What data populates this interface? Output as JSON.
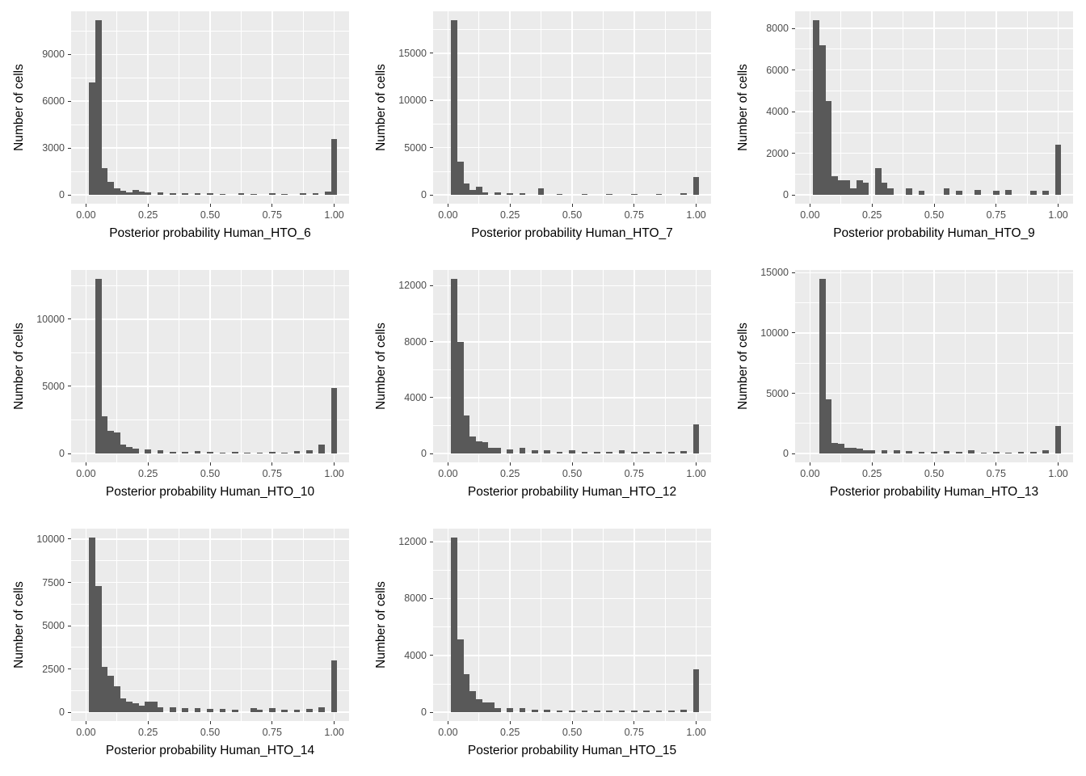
{
  "page": {
    "background": "#ffffff",
    "description_text": ""
  },
  "theme": {
    "panel_bg": "#ebebeb",
    "grid_major": "#ffffff",
    "grid_minor": "#ffffff",
    "bar_fill": "#595959",
    "tick_color": "#333333",
    "tick_label_color": "#4d4d4d",
    "axis_title_color": "#000000"
  },
  "chart_data": [
    {
      "id": "hto6",
      "type": "bar",
      "title": "",
      "xlabel": "Posterior probability Human_HTO_6",
      "ylabel": "Number of cells",
      "x_ticks": [
        0,
        0.25,
        0.5,
        0.75,
        1.0
      ],
      "x_tick_labels": [
        "0.00",
        "0.25",
        "0.50",
        "0.75",
        "1.00"
      ],
      "y_ticks": [
        0,
        3000,
        6000,
        9000
      ],
      "y_max": 11200,
      "bin_width": 0.025,
      "bars": [
        [
          0.025,
          7200
        ],
        [
          0.05,
          11200
        ],
        [
          0.075,
          1700
        ],
        [
          0.1,
          850
        ],
        [
          0.125,
          400
        ],
        [
          0.15,
          250
        ],
        [
          0.175,
          150
        ],
        [
          0.2,
          300
        ],
        [
          0.225,
          200
        ],
        [
          0.25,
          150
        ],
        [
          0.3,
          150
        ],
        [
          0.35,
          120
        ],
        [
          0.4,
          100
        ],
        [
          0.45,
          120
        ],
        [
          0.5,
          120
        ],
        [
          0.55,
          80
        ],
        [
          0.625,
          100
        ],
        [
          0.675,
          80
        ],
        [
          0.75,
          120
        ],
        [
          0.8,
          80
        ],
        [
          0.875,
          100
        ],
        [
          0.925,
          120
        ],
        [
          0.975,
          200
        ],
        [
          1.0,
          3600
        ]
      ]
    },
    {
      "id": "hto7",
      "type": "bar",
      "title": "",
      "xlabel": "Posterior probability Human_HTO_7",
      "ylabel": "Number of cells",
      "x_ticks": [
        0,
        0.25,
        0.5,
        0.75,
        1.0
      ],
      "x_tick_labels": [
        "0.00",
        "0.25",
        "0.50",
        "0.75",
        "1.00"
      ],
      "y_ticks": [
        0,
        5000,
        10000,
        15000
      ],
      "y_max": 18500,
      "bin_width": 0.025,
      "bars": [
        [
          0.025,
          18500
        ],
        [
          0.05,
          3500
        ],
        [
          0.075,
          1200
        ],
        [
          0.1,
          500
        ],
        [
          0.125,
          900
        ],
        [
          0.15,
          300
        ],
        [
          0.2,
          250
        ],
        [
          0.25,
          200
        ],
        [
          0.3,
          150
        ],
        [
          0.375,
          700
        ],
        [
          0.45,
          120
        ],
        [
          0.55,
          120
        ],
        [
          0.65,
          100
        ],
        [
          0.75,
          100
        ],
        [
          0.85,
          100
        ],
        [
          0.95,
          150
        ],
        [
          1.0,
          1900
        ]
      ]
    },
    {
      "id": "hto9",
      "type": "bar",
      "title": "",
      "xlabel": "Posterior probability Human_HTO_9",
      "ylabel": "Number of cells",
      "x_ticks": [
        0,
        0.25,
        0.5,
        0.75,
        1.0
      ],
      "x_tick_labels": [
        "0.00",
        "0.25",
        "0.50",
        "0.75",
        "1.00"
      ],
      "y_ticks": [
        0,
        2000,
        4000,
        6000,
        8000
      ],
      "y_max": 8400,
      "bin_width": 0.025,
      "bars": [
        [
          0.025,
          8400
        ],
        [
          0.05,
          7200
        ],
        [
          0.075,
          4500
        ],
        [
          0.1,
          900
        ],
        [
          0.125,
          700
        ],
        [
          0.15,
          700
        ],
        [
          0.175,
          300
        ],
        [
          0.2,
          700
        ],
        [
          0.225,
          600
        ],
        [
          0.275,
          1300
        ],
        [
          0.3,
          600
        ],
        [
          0.325,
          300
        ],
        [
          0.4,
          300
        ],
        [
          0.45,
          200
        ],
        [
          0.55,
          300
        ],
        [
          0.6,
          200
        ],
        [
          0.675,
          250
        ],
        [
          0.75,
          200
        ],
        [
          0.8,
          250
        ],
        [
          0.9,
          200
        ],
        [
          0.95,
          200
        ],
        [
          1.0,
          2400
        ]
      ]
    },
    {
      "id": "hto10",
      "type": "bar",
      "title": "",
      "xlabel": "Posterior probability Human_HTO_10",
      "ylabel": "Number of cells",
      "x_ticks": [
        0,
        0.25,
        0.5,
        0.75,
        1.0
      ],
      "x_tick_labels": [
        "0.00",
        "0.25",
        "0.50",
        "0.75",
        "1.00"
      ],
      "y_ticks": [
        0,
        5000,
        10000
      ],
      "y_max": 13000,
      "bin_width": 0.025,
      "bars": [
        [
          0.05,
          13000
        ],
        [
          0.075,
          2800
        ],
        [
          0.1,
          1700
        ],
        [
          0.125,
          1600
        ],
        [
          0.15,
          700
        ],
        [
          0.175,
          500
        ],
        [
          0.2,
          400
        ],
        [
          0.25,
          300
        ],
        [
          0.3,
          250
        ],
        [
          0.35,
          150
        ],
        [
          0.4,
          150
        ],
        [
          0.45,
          200
        ],
        [
          0.5,
          150
        ],
        [
          0.55,
          100
        ],
        [
          0.6,
          150
        ],
        [
          0.65,
          100
        ],
        [
          0.7,
          100
        ],
        [
          0.75,
          150
        ],
        [
          0.8,
          100
        ],
        [
          0.85,
          200
        ],
        [
          0.9,
          250
        ],
        [
          0.95,
          700
        ],
        [
          1.0,
          4900
        ]
      ]
    },
    {
      "id": "hto12",
      "type": "bar",
      "title": "",
      "xlabel": "Posterior probability Human_HTO_12",
      "ylabel": "Number of cells",
      "x_ticks": [
        0,
        0.25,
        0.5,
        0.75,
        1.0
      ],
      "x_tick_labels": [
        "0.00",
        "0.25",
        "0.50",
        "0.75",
        "1.00"
      ],
      "y_ticks": [
        0,
        4000,
        8000,
        12000
      ],
      "y_max": 12500,
      "bin_width": 0.025,
      "bars": [
        [
          0.025,
          12500
        ],
        [
          0.05,
          8000
        ],
        [
          0.075,
          2700
        ],
        [
          0.1,
          1200
        ],
        [
          0.125,
          900
        ],
        [
          0.15,
          800
        ],
        [
          0.175,
          400
        ],
        [
          0.2,
          400
        ],
        [
          0.25,
          300
        ],
        [
          0.3,
          400
        ],
        [
          0.35,
          250
        ],
        [
          0.4,
          250
        ],
        [
          0.45,
          150
        ],
        [
          0.5,
          250
        ],
        [
          0.55,
          150
        ],
        [
          0.6,
          100
        ],
        [
          0.65,
          150
        ],
        [
          0.7,
          250
        ],
        [
          0.75,
          100
        ],
        [
          0.8,
          100
        ],
        [
          0.85,
          150
        ],
        [
          0.9,
          150
        ],
        [
          0.95,
          200
        ],
        [
          1.0,
          2100
        ]
      ]
    },
    {
      "id": "hto13",
      "type": "bar",
      "title": "",
      "xlabel": "Posterior probability Human_HTO_13",
      "ylabel": "Number of cells",
      "x_ticks": [
        0,
        0.25,
        0.5,
        0.75,
        1.0
      ],
      "x_tick_labels": [
        "0.00",
        "0.25",
        "0.50",
        "0.75",
        "1.00"
      ],
      "y_ticks": [
        0,
        5000,
        10000,
        15000
      ],
      "y_max": 14500,
      "bin_width": 0.025,
      "bars": [
        [
          0.05,
          14500
        ],
        [
          0.075,
          4500
        ],
        [
          0.1,
          900
        ],
        [
          0.125,
          800
        ],
        [
          0.15,
          500
        ],
        [
          0.175,
          500
        ],
        [
          0.2,
          400
        ],
        [
          0.225,
          300
        ],
        [
          0.25,
          300
        ],
        [
          0.3,
          300
        ],
        [
          0.35,
          250
        ],
        [
          0.4,
          200
        ],
        [
          0.45,
          150
        ],
        [
          0.5,
          150
        ],
        [
          0.55,
          200
        ],
        [
          0.6,
          150
        ],
        [
          0.65,
          250
        ],
        [
          0.7,
          100
        ],
        [
          0.75,
          150
        ],
        [
          0.8,
          100
        ],
        [
          0.85,
          150
        ],
        [
          0.9,
          150
        ],
        [
          0.95,
          250
        ],
        [
          1.0,
          2300
        ]
      ]
    },
    {
      "id": "hto14",
      "type": "bar",
      "title": "",
      "xlabel": "Posterior probability Human_HTO_14",
      "ylabel": "Number of cells",
      "x_ticks": [
        0,
        0.25,
        0.5,
        0.75,
        1.0
      ],
      "x_tick_labels": [
        "0.00",
        "0.25",
        "0.50",
        "0.75",
        "1.00"
      ],
      "y_ticks": [
        0,
        2500,
        5000,
        7500,
        10000
      ],
      "y_max": 10100,
      "bin_width": 0.025,
      "bars": [
        [
          0.025,
          10100
        ],
        [
          0.05,
          7300
        ],
        [
          0.075,
          2600
        ],
        [
          0.1,
          2100
        ],
        [
          0.125,
          1500
        ],
        [
          0.15,
          800
        ],
        [
          0.175,
          600
        ],
        [
          0.2,
          500
        ],
        [
          0.225,
          400
        ],
        [
          0.25,
          600
        ],
        [
          0.275,
          600
        ],
        [
          0.3,
          300
        ],
        [
          0.35,
          300
        ],
        [
          0.4,
          250
        ],
        [
          0.45,
          250
        ],
        [
          0.5,
          200
        ],
        [
          0.55,
          200
        ],
        [
          0.6,
          150
        ],
        [
          0.675,
          250
        ],
        [
          0.7,
          150
        ],
        [
          0.75,
          250
        ],
        [
          0.8,
          150
        ],
        [
          0.85,
          150
        ],
        [
          0.9,
          200
        ],
        [
          0.95,
          300
        ],
        [
          1.0,
          3000
        ]
      ]
    },
    {
      "id": "hto15",
      "type": "bar",
      "title": "",
      "xlabel": "Posterior probability Human_HTO_15",
      "ylabel": "Number of cells",
      "x_ticks": [
        0,
        0.25,
        0.5,
        0.75,
        1.0
      ],
      "x_tick_labels": [
        "0.00",
        "0.25",
        "0.50",
        "0.75",
        "1.00"
      ],
      "y_ticks": [
        0,
        4000,
        8000,
        12000
      ],
      "y_max": 12300,
      "bin_width": 0.025,
      "bars": [
        [
          0.025,
          12300
        ],
        [
          0.05,
          5100
        ],
        [
          0.075,
          2700
        ],
        [
          0.1,
          1500
        ],
        [
          0.125,
          900
        ],
        [
          0.15,
          700
        ],
        [
          0.175,
          700
        ],
        [
          0.2,
          300
        ],
        [
          0.25,
          300
        ],
        [
          0.3,
          300
        ],
        [
          0.35,
          200
        ],
        [
          0.4,
          200
        ],
        [
          0.45,
          150
        ],
        [
          0.5,
          150
        ],
        [
          0.55,
          100
        ],
        [
          0.6,
          150
        ],
        [
          0.65,
          100
        ],
        [
          0.7,
          100
        ],
        [
          0.75,
          150
        ],
        [
          0.8,
          100
        ],
        [
          0.85,
          100
        ],
        [
          0.9,
          150
        ],
        [
          0.95,
          200
        ],
        [
          1.0,
          3000
        ]
      ]
    }
  ]
}
